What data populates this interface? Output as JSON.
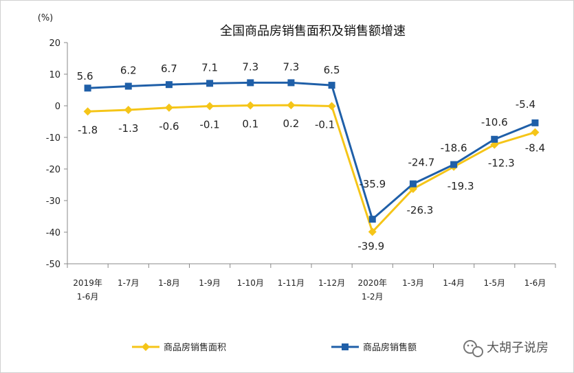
{
  "chart_data": {
    "type": "line",
    "title": "全国商品房销售面积及销售额增速",
    "unit_label": "(%)",
    "categories": [
      [
        "2019年",
        "1-6月"
      ],
      [
        "1-7月"
      ],
      [
        "1-8月"
      ],
      [
        "1-9月"
      ],
      [
        "1-10月"
      ],
      [
        "1-11月"
      ],
      [
        "1-12月"
      ],
      [
        "2020年",
        "1-2月"
      ],
      [
        "1-3月"
      ],
      [
        "1-4月"
      ],
      [
        "1-5月"
      ],
      [
        "1-6月"
      ]
    ],
    "ylim": [
      -50,
      20
    ],
    "yticks": [
      20,
      10,
      0,
      -10,
      -20,
      -30,
      -40,
      -50
    ],
    "grid": false,
    "legend_position": "bottom",
    "series": [
      {
        "name": "商品房销售面积",
        "color": "#f5c518",
        "marker": "diamond",
        "values": [
          -1.8,
          -1.3,
          -0.6,
          -0.1,
          0.1,
          0.2,
          -0.1,
          -39.9,
          -26.3,
          -19.3,
          -12.3,
          -8.4
        ],
        "labels": [
          "-1.8",
          "-1.3",
          "-0.6",
          "-0.1",
          "0.1",
          "0.2",
          "-0.1",
          "-39.9",
          "-26.3",
          "-19.3",
          "-12.3",
          "-8.4"
        ]
      },
      {
        "name": "商品房销售额",
        "color": "#1f5fa8",
        "marker": "square",
        "values": [
          5.6,
          6.2,
          6.7,
          7.1,
          7.3,
          7.3,
          6.5,
          -35.9,
          -24.7,
          -18.6,
          -10.6,
          -5.4
        ],
        "labels": [
          "5.6",
          "6.2",
          "6.7",
          "7.1",
          "7.3",
          "7.3",
          "6.5",
          "-35.9",
          "-24.7",
          "-18.6",
          "-10.6",
          "-5.4"
        ]
      }
    ]
  },
  "watermark": {
    "text": "大胡子说房",
    "icon": "wechat-icon"
  }
}
